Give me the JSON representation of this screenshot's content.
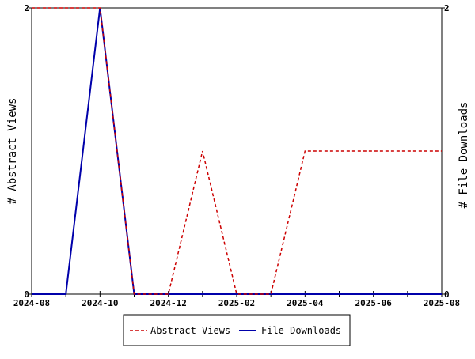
{
  "chart_data": {
    "type": "line",
    "x": [
      "2024-08",
      "2024-09",
      "2024-10",
      "2024-11",
      "2024-12",
      "2025-01",
      "2025-02",
      "2025-03",
      "2025-04",
      "2025-05",
      "2025-06",
      "2025-07",
      "2025-08"
    ],
    "x_tick_labels": [
      "2024-08",
      "2024-10",
      "2024-12",
      "2025-02",
      "2025-04",
      "2025-06",
      "2025-08"
    ],
    "y_left": {
      "label": "# Abstract Views",
      "ylim": [
        0,
        2
      ],
      "ticks": [
        "0",
        "2"
      ]
    },
    "y_right": {
      "label": "# File Downloads",
      "ylim": [
        0,
        2
      ],
      "ticks": [
        "0",
        "2"
      ]
    },
    "series": [
      {
        "name": "Abstract Views",
        "axis": "left",
        "color": "#cc0000",
        "style": "dashed",
        "values": [
          2,
          2,
          2,
          0,
          0,
          1,
          0,
          0,
          1,
          1,
          1,
          1,
          1
        ]
      },
      {
        "name": "File Downloads",
        "axis": "right",
        "color": "#0000aa",
        "style": "solid",
        "values": [
          0,
          0,
          2,
          0,
          0,
          0,
          0,
          0,
          0,
          0,
          0,
          0,
          0
        ]
      }
    ],
    "legend": {
      "placement": "bottom-center",
      "entries": [
        "Abstract Views",
        "File Downloads"
      ]
    },
    "grid": false
  }
}
